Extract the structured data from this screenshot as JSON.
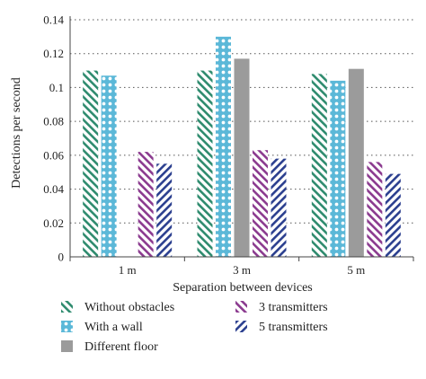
{
  "chart_data": {
    "type": "bar",
    "xlabel": "Separation between devices",
    "ylabel": "Detections per second",
    "ylim": [
      0,
      0.14
    ],
    "yticks": [
      0,
      0.02,
      0.04,
      0.06,
      0.08,
      0.1,
      0.12,
      0.14
    ],
    "ytick_labels": [
      "0",
      "0.02",
      "0.04",
      "0.06",
      "0.08",
      "0.1",
      "0.12",
      "0.14"
    ],
    "grid": "horizontal dotted",
    "legend_placement": "bottom",
    "categories": [
      "1 m",
      "3 m",
      "5 m"
    ],
    "series": [
      {
        "name": "Without obstacles",
        "values": [
          0.11,
          0.11,
          0.108
        ],
        "color": "#2e8b6e",
        "pattern": "green-diagonal-hatch"
      },
      {
        "name": "With a wall",
        "values": [
          0.107,
          0.13,
          0.104
        ],
        "color": "#5bb8d8",
        "pattern": "blue-dotted"
      },
      {
        "name": "Different floor",
        "values": [
          null,
          0.117,
          0.111
        ],
        "color": "#9b9b9b",
        "pattern": "solid-gray"
      },
      {
        "name": "3 transmitters",
        "values": [
          0.062,
          0.063,
          0.056
        ],
        "color": "#8b3a8f",
        "pattern": "purple-diagonal-hatch"
      },
      {
        "name": "5 transmitters",
        "values": [
          0.055,
          0.058,
          0.049
        ],
        "color": "#2b3f8f",
        "pattern": "navy-back-diagonal-hatch"
      }
    ]
  }
}
